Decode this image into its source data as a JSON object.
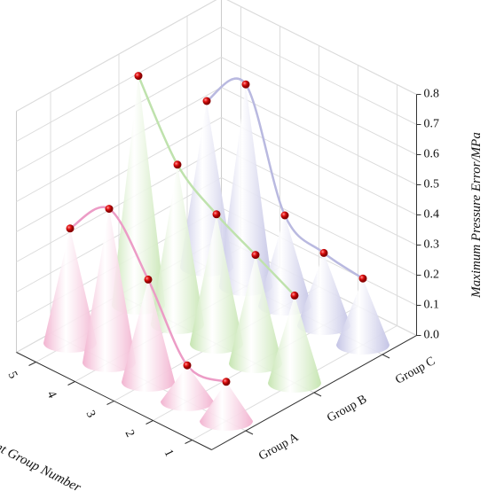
{
  "chart_data": {
    "type": "cone3d",
    "y_label": "Maximum Pressure Error/MPa",
    "x_label": "Experiment Group Number",
    "categories": [
      "1",
      "2",
      "3",
      "4",
      "5"
    ],
    "series": [
      {
        "name": "Group A",
        "color": "#f2b3d0",
        "line_color": "#ec9cc6",
        "values": [
          0.13,
          0.12,
          0.34,
          0.51,
          0.38
        ]
      },
      {
        "name": "Group B",
        "color": "#c6e5b1",
        "line_color": "#bfe2ad",
        "values": [
          0.29,
          0.36,
          0.43,
          0.53,
          0.76
        ]
      },
      {
        "name": "Group C",
        "color": "#c3c3e5",
        "line_color": "#b9b9e0",
        "values": [
          0.22,
          0.24,
          0.3,
          0.67,
          0.55
        ]
      }
    ],
    "ylim": [
      0,
      0.8
    ],
    "yticks": [
      {
        "value": 0,
        "label": "0.0"
      },
      0.1,
      0.2,
      0.3,
      0.4,
      0.5,
      0.6,
      0.7,
      0.8
    ],
    "grid": true
  }
}
